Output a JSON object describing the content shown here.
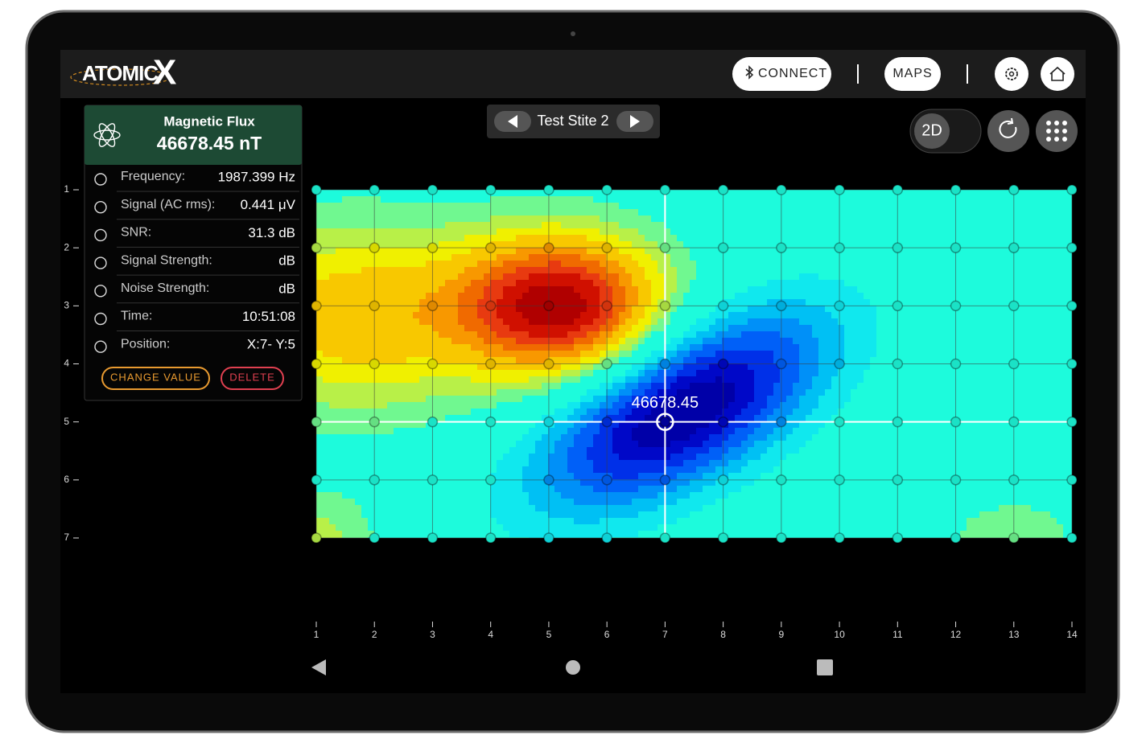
{
  "header": {
    "logo_text": "ATOMIC",
    "logo_mark": "X",
    "buttons": [
      "CONNECT",
      "MAPS"
    ]
  },
  "site_nav": {
    "name": "Test Stite 2"
  },
  "view_toggle": "2D",
  "panel": {
    "title": "Magnetic Flux",
    "value": "46678.45 nT",
    "rows": [
      {
        "label": "Frequency:",
        "value": "1987.399 Hz"
      },
      {
        "label": "Signal (AC rms):",
        "value": "0.441 μV"
      },
      {
        "label": "SNR:",
        "value": "31.3 dB"
      },
      {
        "label": "Signal Strength:",
        "value": "dB"
      },
      {
        "label": "Noise Strength:",
        "value": "dB"
      },
      {
        "label": "Time:",
        "value": "10:51:08"
      },
      {
        "label": "Position:",
        "value": "X:7- Y:5"
      }
    ],
    "buttons": [
      "CHANGE VALUE",
      "DELETE"
    ]
  },
  "plot": {
    "xticks": [
      1,
      2,
      3,
      4,
      5,
      6,
      7,
      8,
      9,
      10,
      11,
      12,
      13,
      14
    ],
    "yticks": [
      1,
      2,
      3,
      4,
      5,
      6,
      7
    ],
    "selected": {
      "x": 7,
      "y": 5,
      "label": "46678.45"
    }
  }
}
